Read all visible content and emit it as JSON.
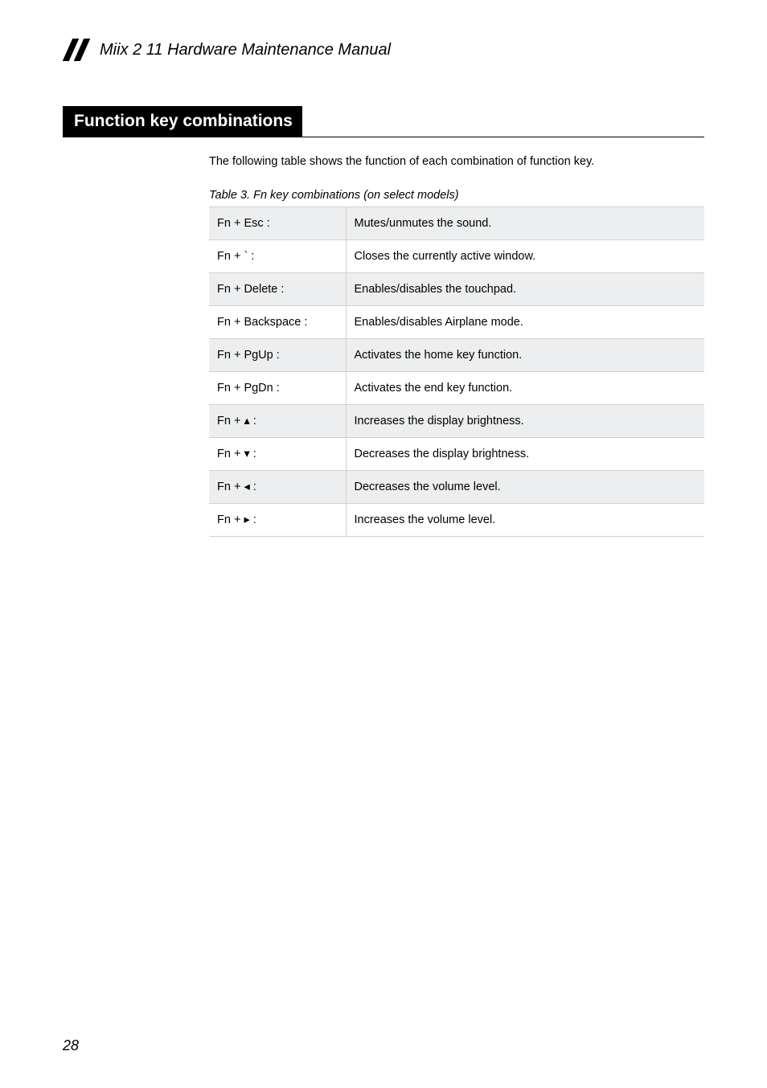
{
  "header": {
    "title": "Miix 2 11 Hardware Maintenance Manual"
  },
  "section": {
    "heading": "Function key combinations",
    "intro": "The following table shows the function of each combination of function key.",
    "table_caption": "Table 3. Fn key combinations (on select models)"
  },
  "table_rows": [
    {
      "key": "Fn + Esc :",
      "desc": "Mutes/unmutes the sound."
    },
    {
      "key": "Fn + ` :",
      "desc": "Closes the currently active window."
    },
    {
      "key": "Fn + Delete :",
      "desc": "Enables/disables the touchpad."
    },
    {
      "key": "Fn + Backspace :",
      "desc": "Enables/disables Airplane mode."
    },
    {
      "key": "Fn + PgUp :",
      "desc": "Activates the home key function."
    },
    {
      "key": "Fn + PgDn :",
      "desc": "Activates the end key function."
    },
    {
      "key": "Fn + ▴ :",
      "desc": "Increases the display brightness."
    },
    {
      "key": "Fn + ▾ :",
      "desc": "Decreases the display brightness."
    },
    {
      "key": "Fn + ◂ :",
      "desc": "Decreases the volume level."
    },
    {
      "key": "Fn + ▸ :",
      "desc": "Increases the volume level."
    }
  ],
  "page_number": "28"
}
